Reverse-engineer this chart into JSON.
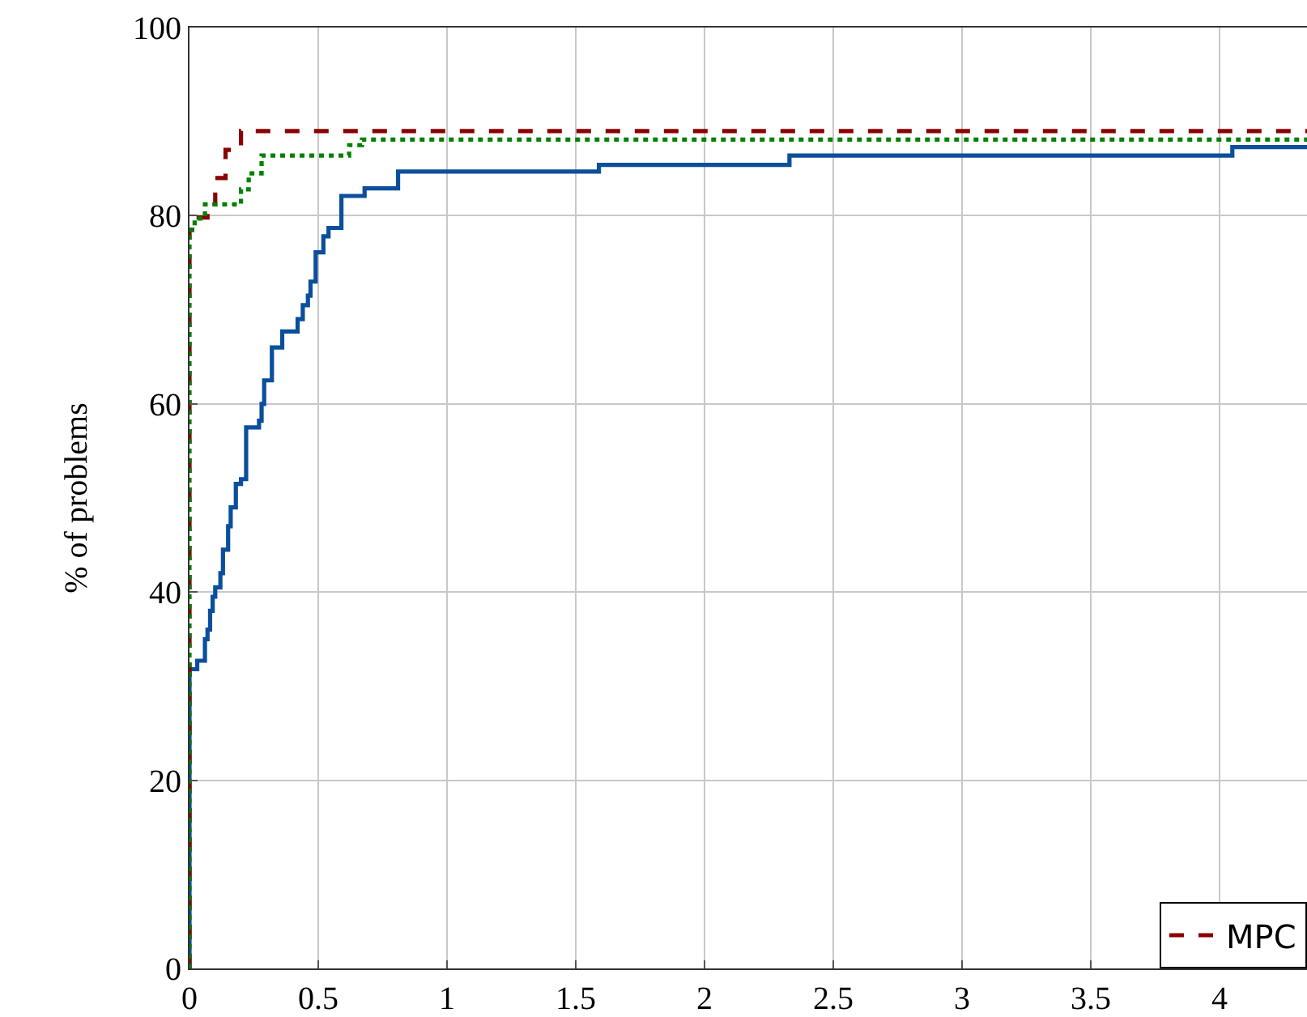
{
  "chart_data": {
    "type": "step",
    "ylabel": "% of problems",
    "xlim": [
      0,
      4.34
    ],
    "ylim": [
      0,
      100
    ],
    "xticks": [
      0,
      0.5,
      1,
      1.5,
      2,
      2.5,
      3,
      3.5,
      4
    ],
    "yticks": [
      0,
      20,
      40,
      60,
      80,
      100
    ],
    "grid": true,
    "legend": "bottom right",
    "marker": "none",
    "series": [
      {
        "color": "#0b4f9c",
        "line_style": "solid",
        "x": [
          0,
          0,
          0.03,
          0.06,
          0.07,
          0.08,
          0.09,
          0.1,
          0.12,
          0.13,
          0.15,
          0.16,
          0.18,
          0.2,
          0.22,
          0.27,
          0.28,
          0.29,
          0.32,
          0.36,
          0.42,
          0.44,
          0.46,
          0.47,
          0.49,
          0.52,
          0.54,
          0.59,
          0.68,
          0.81,
          1.59,
          2.33,
          4.05,
          4.34
        ],
        "values": [
          0,
          31.8,
          32.7,
          35,
          36,
          38,
          39.5,
          40.5,
          42,
          44.5,
          47,
          49,
          51.5,
          52,
          57.5,
          58.2,
          60,
          62.5,
          66,
          67.7,
          69,
          70.5,
          71.5,
          73,
          76.1,
          77.8,
          78.7,
          82.1,
          82.9,
          84.7,
          85.4,
          86.4,
          87.3,
          87.3
        ]
      },
      {
        "name": "MPC",
        "color": "#8b0000",
        "line_style": "dashed",
        "x": [
          0,
          0,
          0.02,
          0.07,
          0.1,
          0.14,
          0.2,
          4.34
        ],
        "values": [
          0,
          78.5,
          79.8,
          81.2,
          84,
          87,
          89,
          89
        ]
      },
      {
        "color": "#008000",
        "line_style": "dotted",
        "x": [
          0,
          0,
          0.02,
          0.06,
          0.2,
          0.23,
          0.28,
          0.62,
          0.67,
          4.34
        ],
        "values": [
          0,
          78.5,
          79.7,
          81.2,
          82.8,
          84.5,
          86.4,
          87.5,
          88.1,
          88.1
        ]
      }
    ]
  }
}
